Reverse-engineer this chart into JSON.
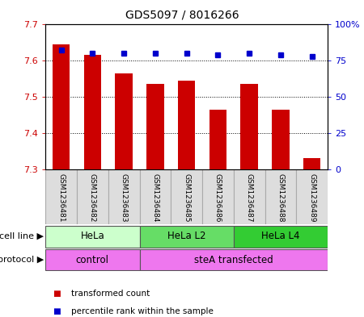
{
  "title": "GDS5097 / 8016266",
  "samples": [
    "GSM1236481",
    "GSM1236482",
    "GSM1236483",
    "GSM1236484",
    "GSM1236485",
    "GSM1236486",
    "GSM1236487",
    "GSM1236488",
    "GSM1236489"
  ],
  "transformed_counts": [
    7.645,
    7.615,
    7.565,
    7.535,
    7.545,
    7.465,
    7.535,
    7.465,
    7.33
  ],
  "percentile_ranks": [
    82,
    80,
    80,
    80,
    80,
    79,
    80,
    79,
    78
  ],
  "ylim_left": [
    7.3,
    7.7
  ],
  "ylim_right": [
    0,
    100
  ],
  "yticks_left": [
    7.3,
    7.4,
    7.5,
    7.6,
    7.7
  ],
  "yticks_right": [
    0,
    25,
    50,
    75,
    100
  ],
  "ytick_labels_right": [
    "0",
    "25",
    "50",
    "75",
    "100%"
  ],
  "bar_color": "#cc0000",
  "dot_color": "#0000cc",
  "bar_bottom": 7.3,
  "cell_line_groups": [
    {
      "label": "HeLa",
      "start": 0,
      "end": 3,
      "color": "#ccffcc"
    },
    {
      "label": "HeLa L2",
      "start": 3,
      "end": 6,
      "color": "#66dd66"
    },
    {
      "label": "HeLa L4",
      "start": 6,
      "end": 9,
      "color": "#33cc33"
    }
  ],
  "protocol_groups": [
    {
      "label": "control",
      "start": 0,
      "end": 3,
      "color": "#ee77ee"
    },
    {
      "label": "steA transfected",
      "start": 3,
      "end": 9,
      "color": "#ee77ee"
    }
  ],
  "cell_line_label": "cell line",
  "protocol_label": "protocol",
  "legend_items": [
    {
      "color": "#cc0000",
      "label": "transformed count"
    },
    {
      "color": "#0000cc",
      "label": "percentile rank within the sample"
    }
  ],
  "background_color": "#ffffff",
  "title_fontsize": 10,
  "tick_fontsize": 8,
  "label_fontsize": 8,
  "sample_fontsize": 6.5,
  "row_fontsize": 8.5
}
